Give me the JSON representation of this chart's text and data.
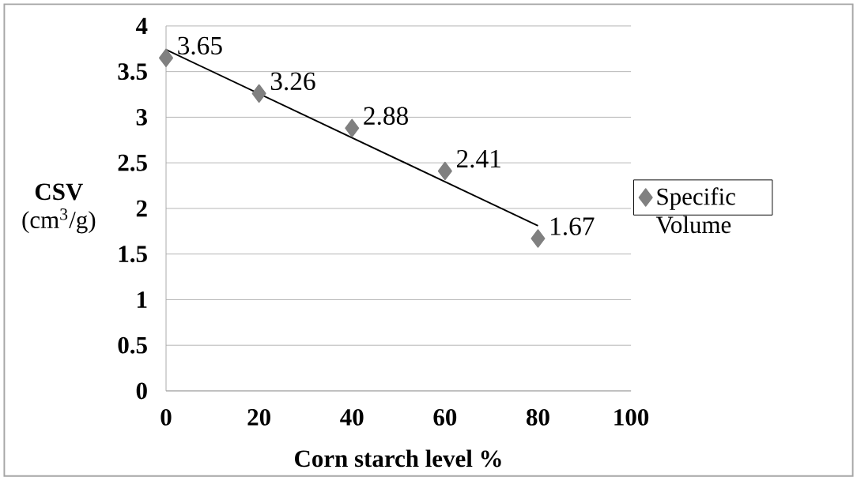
{
  "chart_data": {
    "type": "scatter",
    "xlabel": "Corn starch level %",
    "ylabel": "**CSV** (cm$^{3}$/g)",
    "x": [
      0,
      20,
      40,
      60,
      80
    ],
    "series": [
      {
        "name": "Specific Volume",
        "color": "#808080",
        "marker": "diamond",
        "values": [
          3.65,
          3.26,
          2.88,
          2.41,
          1.67
        ],
        "value_labels": [
          "3.65",
          "3.26",
          "2.88",
          "2.41",
          "1.67"
        ]
      },
      {
        "type": "line",
        "color": "#000000",
        "x": [
          0,
          80
        ],
        "values": [
          3.74,
          1.81
        ]
      }
    ],
    "xlim": [
      0,
      100
    ],
    "xticks": [
      0,
      20,
      40,
      60,
      80,
      100
    ],
    "ylim": [
      0,
      4
    ],
    "yticks": [
      0,
      0.5,
      1,
      1.5,
      2,
      2.5,
      3,
      3.5,
      4
    ],
    "grid": "y",
    "legend": "right"
  }
}
